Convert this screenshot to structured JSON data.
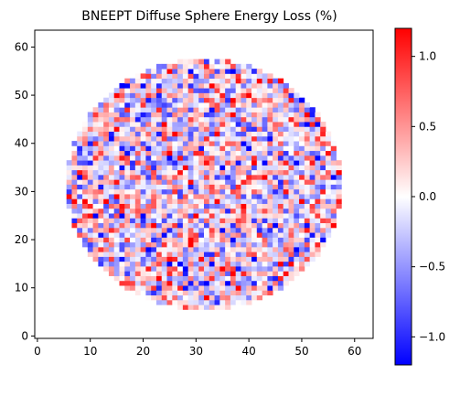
{
  "chart_data": {
    "type": "heatmap",
    "title": "BNEEPT Diffuse Sphere Energy Loss (%)",
    "grid_size": [
      64,
      64
    ],
    "xlim": [
      -0.5,
      63.5
    ],
    "ylim": [
      -0.5,
      63.5
    ],
    "x_ticks": [
      0,
      10,
      20,
      30,
      40,
      50,
      60
    ],
    "y_ticks": [
      0,
      10,
      20,
      30,
      40,
      50,
      60
    ],
    "circle_center": [
      32,
      32
    ],
    "circle_radius": 26,
    "value_range": [
      -1.2,
      1.2
    ],
    "colormap": "bwr",
    "colors": {
      "low": "#0000ff",
      "mid": "#ffffff",
      "high": "#ff0000"
    },
    "colorbar": {
      "ticks": [
        1.0,
        0.5,
        0.0,
        -0.5,
        -1.0
      ],
      "tick_labels": [
        "1.0",
        "0.5",
        "0.0",
        "−0.5",
        "−1.0"
      ]
    },
    "grid": false
  }
}
